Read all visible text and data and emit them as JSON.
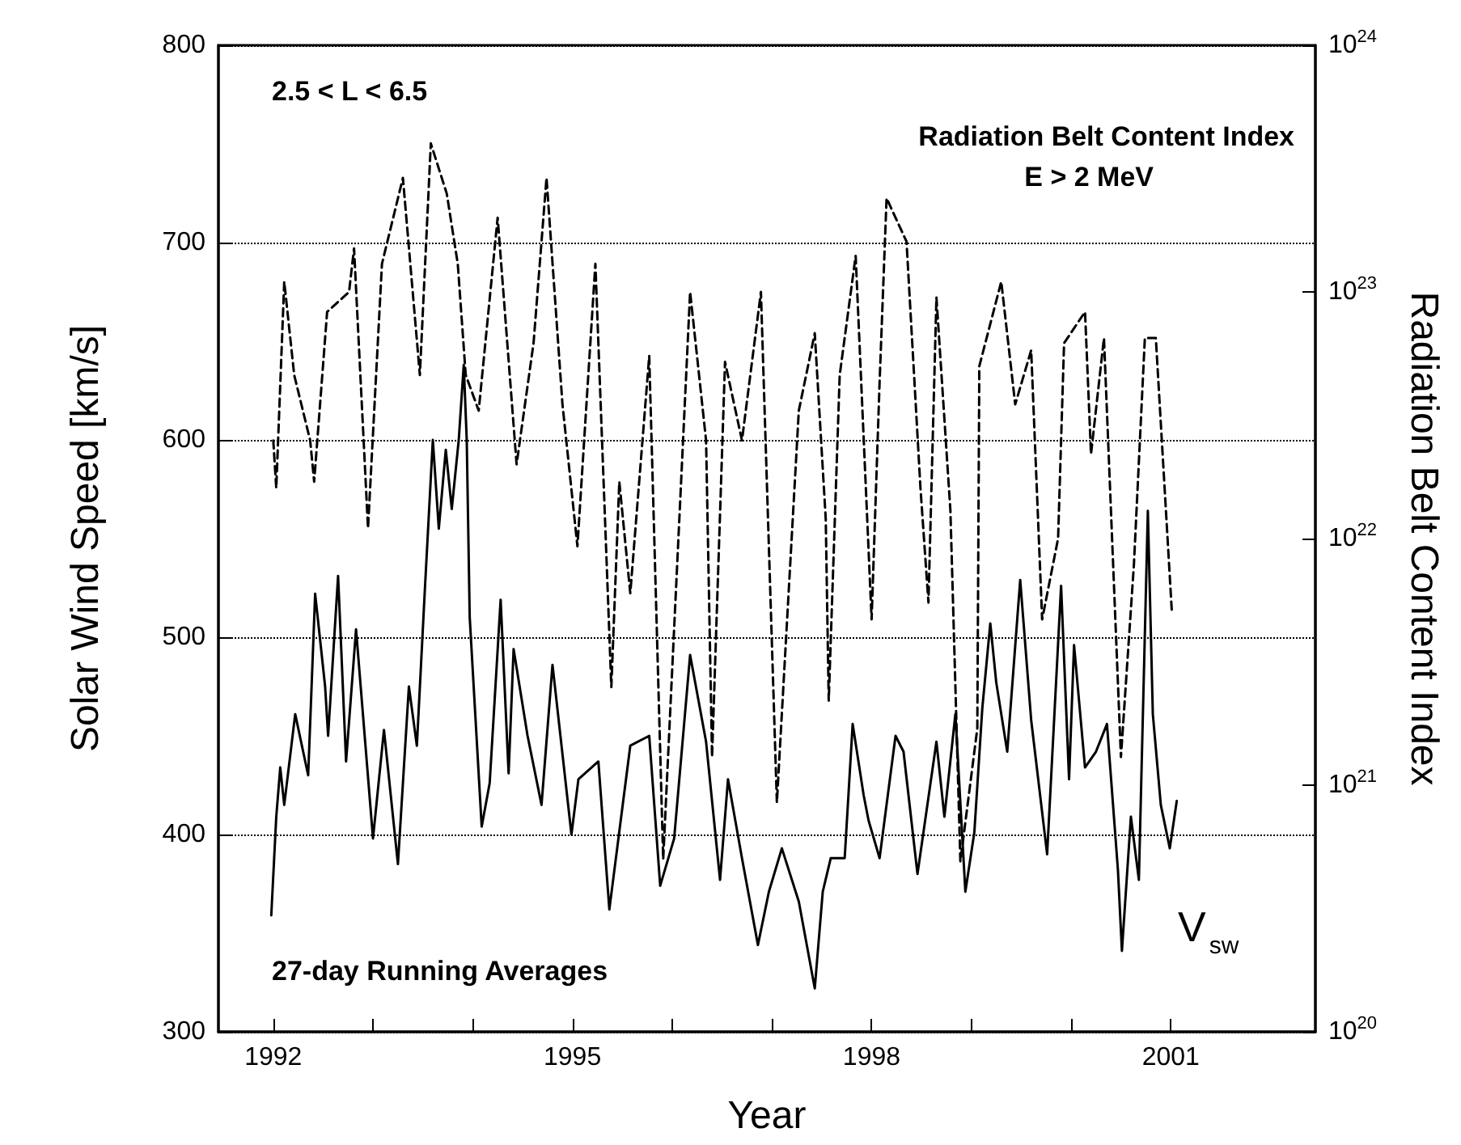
{
  "chart_data": {
    "type": "line",
    "xlabel": "Year",
    "ylabel": "Solar Wind Speed [km/s]",
    "y2label": "Radiation Belt Content Index",
    "annotations": [
      "2.5 < L < 6.5",
      "Radiation Belt Content Index",
      "E > 2 MeV",
      "27-day Running Averages",
      "V$_{sw}$"
    ],
    "xlim": [
      1991.45,
      2002.45
    ],
    "xticks": [
      1992,
      {
        "value": 1993,
        "label": null
      },
      {
        "value": 1994,
        "label": null
      },
      1995,
      {
        "value": 1996,
        "label": null
      },
      {
        "value": 1997,
        "label": null
      },
      1998,
      {
        "value": 1999,
        "label": null
      },
      {
        "value": 2000,
        "label": null
      },
      2001
    ],
    "ylim": [
      300,
      800
    ],
    "yticks": [
      300,
      400,
      500,
      600,
      700,
      800
    ],
    "y2lim": [
      1e+20,
      1e+24
    ],
    "y2ticks": [
      {
        "value": 1e+20,
        "label": "10$^{20}$"
      },
      {
        "value": 1e+21,
        "label": "10$^{21}$"
      },
      {
        "value": 1e+22,
        "label": "10$^{22}$"
      },
      {
        "value": 1e+23,
        "label": "10$^{23}$"
      },
      {
        "value": 1e+24,
        "label": "10$^{24}$"
      }
    ],
    "log": "y2",
    "grid": "y",
    "marker": "none",
    "series": [
      {
        "color": "#000000",
        "line_style": "solid",
        "x": [
          1991.98,
          1992.03,
          1992.07,
          1992.11,
          1992.22,
          1992.35,
          1992.42,
          1992.52,
          1992.55,
          1992.65,
          1992.73,
          1992.83,
          1993.0,
          1993.11,
          1993.25,
          1993.36,
          1993.44,
          1993.52,
          1993.6,
          1993.66,
          1993.73,
          1993.79,
          1993.86,
          1993.91,
          1993.94,
          1993.97,
          1994.09,
          1994.17,
          1994.28,
          1994.36,
          1994.41,
          1994.55,
          1994.69,
          1994.8,
          1994.99,
          1995.06,
          1995.26,
          1995.37,
          1995.58,
          1995.77,
          1995.88,
          1996.02,
          1996.18,
          1996.34,
          1996.48,
          1996.56,
          1996.7,
          1996.86,
          1996.97,
          1997.1,
          1997.27,
          1997.43,
          1997.51,
          1997.59,
          1997.73,
          1997.81,
          1997.92,
          1997.97,
          1998.08,
          1998.24,
          1998.32,
          1998.46,
          1998.65,
          1998.73,
          1998.84,
          1998.94,
          1999.03,
          1999.11,
          1999.19,
          1999.25,
          1999.36,
          1999.49,
          1999.6,
          1999.76,
          1999.9,
          1999.98,
          2000.03,
          2000.14,
          2000.25,
          2000.36,
          2000.47,
          2000.51,
          2000.6,
          2000.68,
          2000.77,
          2000.82,
          2000.9,
          2000.99,
          2001.06
        ],
        "values": [
          359,
          409,
          434,
          415,
          461,
          430,
          522,
          475,
          450,
          531,
          437,
          504,
          398,
          453,
          385,
          475,
          445,
          524,
          600,
          555,
          595,
          565,
          600,
          638,
          600,
          510,
          404,
          426,
          519,
          431,
          494,
          450,
          415,
          486,
          400,
          428,
          437,
          362,
          445,
          450,
          374,
          398,
          491,
          447,
          377,
          428,
          388,
          344,
          371,
          393,
          366,
          322,
          371,
          388,
          388,
          456,
          420,
          407,
          388,
          450,
          442,
          380,
          447,
          409,
          461,
          371,
          401,
          464,
          507,
          477,
          442,
          529,
          458,
          390,
          526,
          428,
          496,
          434,
          442,
          456,
          382,
          341,
          409,
          377,
          564,
          461,
          415,
          393,
          417
        ]
      },
      {
        "color": "#000000",
        "line_style": "dashed",
        "axis": "y2",
        "x": [
          1992.0,
          1992.03,
          1992.11,
          1992.21,
          1992.37,
          1992.41,
          1992.54,
          1992.76,
          1992.81,
          1992.95,
          1993.09,
          1993.3,
          1993.47,
          1993.58,
          1993.74,
          1993.85,
          1993.93,
          1994.06,
          1994.25,
          1994.44,
          1994.61,
          1994.74,
          1994.9,
          1995.05,
          1995.23,
          1995.39,
          1995.47,
          1995.58,
          1995.77,
          1995.91,
          1996.18,
          1996.34,
          1996.4,
          1996.53,
          1996.7,
          1996.89,
          1997.05,
          1997.27,
          1997.43,
          1997.54,
          1997.57,
          1997.68,
          1997.84,
          1998.0,
          1998.08,
          1998.15,
          1998.35,
          1998.49,
          1998.57,
          1998.65,
          1998.79,
          1998.89,
          1999.06,
          1999.08,
          1999.3,
          1999.44,
          1999.6,
          1999.71,
          1999.87,
          1999.93,
          2000.14,
          2000.2,
          2000.33,
          2000.5,
          2000.63,
          2000.74,
          2000.85,
          2001.01
        ],
        "values": [
          2.5e+22,
          1.6e+22,
          1.1e+23,
          4.6e+22,
          2.5e+22,
          1.7e+22,
          8.3e+22,
          1e+23,
          1.5e+23,
          1.1e+22,
          1.3e+23,
          2.9e+23,
          4.6e+22,
          4e+23,
          2.5e+23,
          1.3e+23,
          4.6e+22,
          3.3e+22,
          2e+23,
          2e+22,
          6.2e+22,
          2.9e+23,
          3.5e+22,
          9.3e+21,
          1.3e+23,
          2.5e+21,
          1.7e+22,
          6e+21,
          5.5e+22,
          5e+20,
          1e+23,
          2.5e+22,
          1.3e+21,
          5.2e+22,
          2.5e+22,
          1e+23,
          8.5e+20,
          3.3e+22,
          6.8e+22,
          1.2e+22,
          2.2e+21,
          4.6e+22,
          1.4e+23,
          4.7e+21,
          4.3e+22,
          2.4e+23,
          1.6e+23,
          1.6e+22,
          5.5e+21,
          9.5e+22,
          1.3e+22,
          4.9e+20,
          1.7e+21,
          5e+22,
          1.1e+23,
          3.5e+22,
          5.8e+22,
          4.7e+21,
          1e+22,
          6.2e+22,
          8.3e+22,
          2.2e+22,
          6.5e+22,
          1.3e+21,
          7.8e+21,
          6.5e+22,
          6.5e+22,
          5.1e+21
        ]
      }
    ]
  }
}
